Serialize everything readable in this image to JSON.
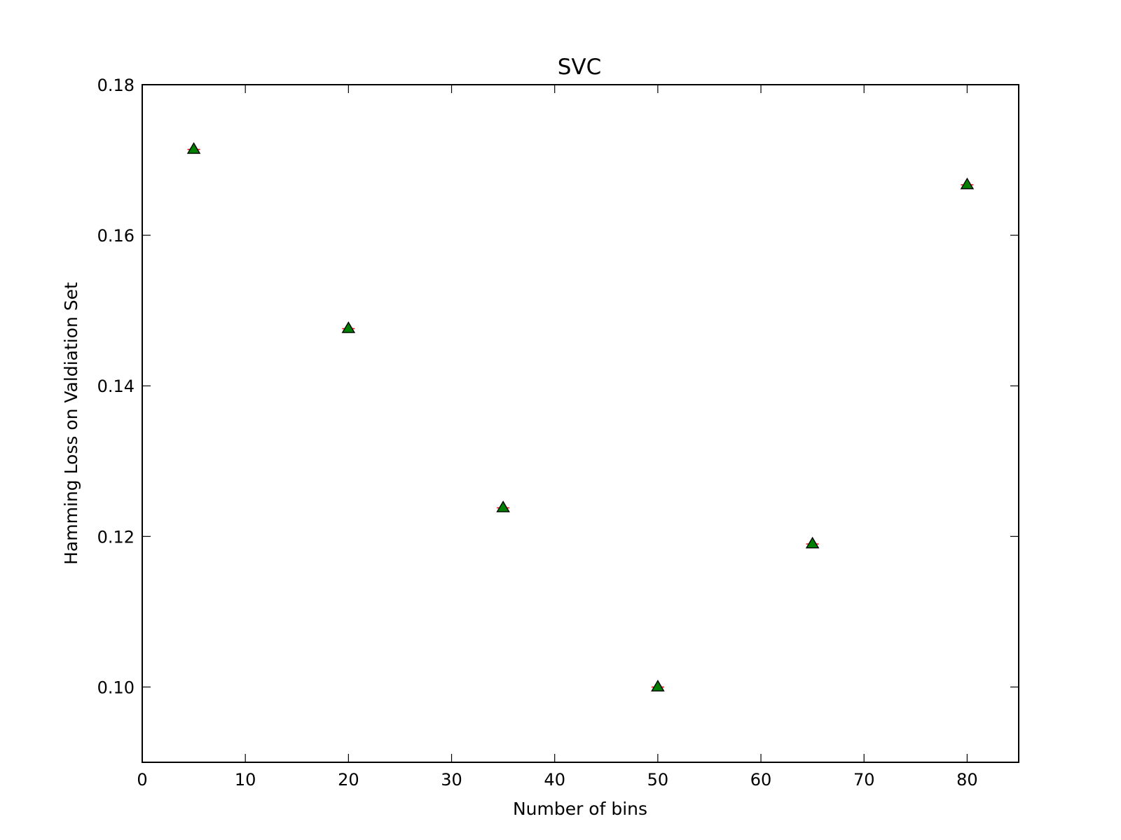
{
  "chart_data": {
    "type": "scatter",
    "title": "SVC",
    "xlabel": "Number of bins",
    "ylabel": "Hamming Loss on Valdiation Set",
    "xlim": [
      0,
      85
    ],
    "ylim": [
      0.09,
      0.18
    ],
    "xticks": [
      0,
      10,
      20,
      30,
      40,
      50,
      60,
      70,
      80
    ],
    "xtick_labels": [
      "0",
      "10",
      "20",
      "30",
      "40",
      "50",
      "60",
      "70",
      "80"
    ],
    "yticks": [
      0.1,
      0.12,
      0.14,
      0.16,
      0.18
    ],
    "ytick_labels": [
      "0.10",
      "0.12",
      "0.14",
      "0.16",
      "0.18"
    ],
    "grid": false,
    "marker": "triangle",
    "colors": {
      "marker_fill": "#007f00",
      "marker_edge": "#000000",
      "error_bar": "#ff0000",
      "axes": "#000000"
    },
    "series": [
      {
        "x": [
          5,
          20,
          35,
          50,
          65,
          80
        ],
        "y": [
          0.1714,
          0.1476,
          0.1238,
          0.1,
          0.119,
          0.1667
        ]
      }
    ]
  }
}
